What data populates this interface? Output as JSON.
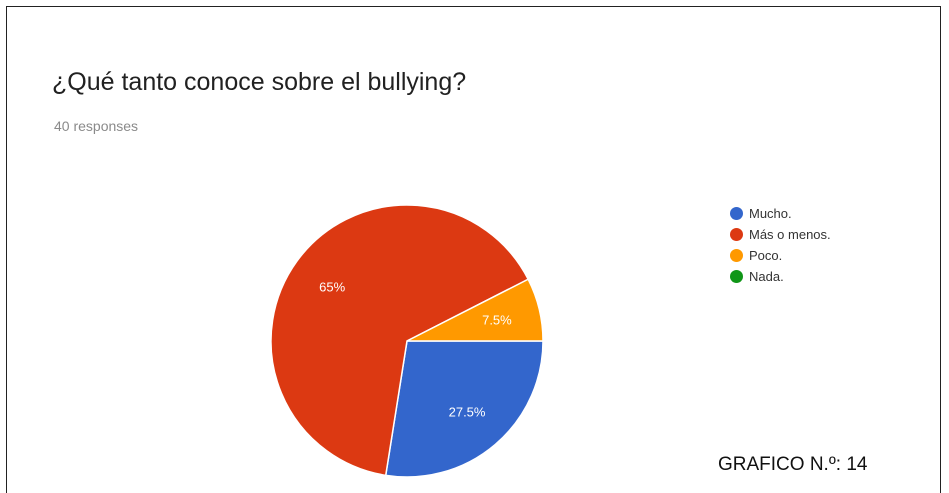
{
  "chart_data": {
    "type": "pie",
    "title": "¿Qué tanto conoce sobre el bullying?",
    "subtitle": "40 responses",
    "slices": [
      {
        "label": "Mucho.",
        "value": 27.5,
        "display": "27.5%",
        "color": "#3366cc"
      },
      {
        "label": "Más o menos.",
        "value": 65,
        "display": "65%",
        "color": "#dc3912"
      },
      {
        "label": "Poco.",
        "value": 7.5,
        "display": "7.5%",
        "color": "#ff9900"
      },
      {
        "label": "Nada.",
        "value": 0,
        "display": "",
        "color": "#109618"
      }
    ],
    "legend_position": "right"
  },
  "caption": "GRAFICO N.º: 14"
}
